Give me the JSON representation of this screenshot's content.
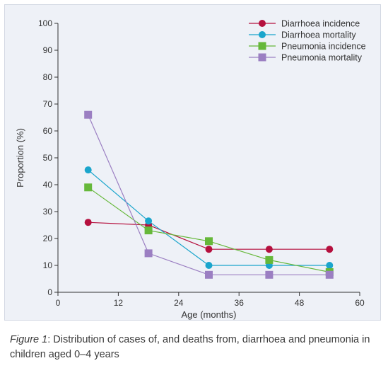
{
  "chart_data": {
    "type": "line",
    "x": [
      6,
      18,
      30,
      42,
      54
    ],
    "xlabel": "Age (months)",
    "ylabel": "Proportion (%)",
    "xlim": [
      0,
      60
    ],
    "ylim": [
      0,
      100
    ],
    "xticks": [
      0,
      12,
      24,
      36,
      48,
      60
    ],
    "yticks": [
      0,
      10,
      20,
      30,
      40,
      50,
      60,
      70,
      80,
      90,
      100
    ],
    "grid": false,
    "legend_position": "top-right",
    "series": [
      {
        "name": "Diarrhoea incidence",
        "color": "#b5103e",
        "marker": "circle",
        "values": [
          26,
          25,
          16,
          16,
          16
        ]
      },
      {
        "name": "Diarrhoea mortality",
        "color": "#1aa5cc",
        "marker": "circle",
        "values": [
          45.5,
          26.5,
          10,
          10,
          10
        ]
      },
      {
        "name": "Pneumonia incidence",
        "color": "#66b83a",
        "marker": "square",
        "values": [
          39,
          23,
          19,
          12,
          7.5
        ]
      },
      {
        "name": "Pneumonia mortality",
        "color": "#9b7fc2",
        "marker": "square",
        "values": [
          66,
          14.5,
          6.5,
          6.5,
          6.5
        ]
      }
    ]
  },
  "caption": {
    "label": "Figure 1",
    "text": ": Distribution of cases of, and deaths from, diarrhoea and pneumonia in children aged 0–4 years"
  }
}
